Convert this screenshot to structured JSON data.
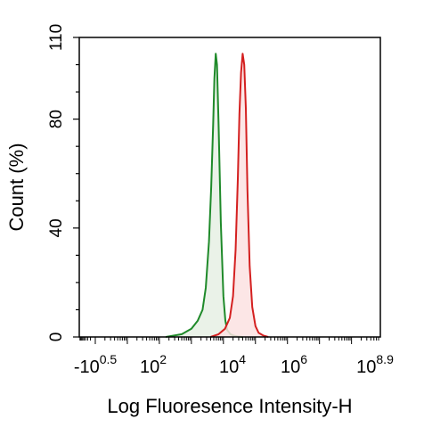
{
  "chart_data": {
    "type": "area",
    "title": "",
    "xlabel": "Log Fluoresence Intensity-H",
    "ylabel": "Count  (%)",
    "x_scale": "log",
    "xlim": [
      -0.5,
      8.9
    ],
    "ylim": [
      0,
      110
    ],
    "x_tick_labels": [
      {
        "value": 0.5,
        "prefix": "-10",
        "exp": "0.5"
      },
      {
        "value": 2,
        "prefix": "10",
        "exp": "2"
      },
      {
        "value": 4,
        "prefix": "10",
        "exp": "4"
      },
      {
        "value": 6,
        "prefix": "10",
        "exp": "6"
      },
      {
        "value": 8.9,
        "prefix": "10",
        "exp": "8.9"
      }
    ],
    "y_ticks": [
      0,
      40,
      80,
      110
    ],
    "grid": false,
    "legend": "none",
    "series": [
      {
        "color": "#1f8a2a",
        "fill": "#e6f0e4",
        "x": [
          2.2,
          2.7,
          3.0,
          3.2,
          3.35,
          3.45,
          3.55,
          3.62,
          3.68,
          3.72,
          3.76,
          3.8,
          3.85,
          3.92,
          4.0,
          4.06,
          4.12,
          4.22,
          4.32,
          4.45,
          4.6
        ],
        "y": [
          0,
          1,
          3,
          6,
          10,
          18,
          35,
          55,
          78,
          95,
          104,
          100,
          78,
          42,
          15,
          6,
          2.5,
          1,
          0.5,
          0.2,
          0
        ]
      },
      {
        "color": "#d42020",
        "fill": "#fbe2e2",
        "x": [
          3.6,
          3.85,
          4.05,
          4.2,
          4.3,
          4.38,
          4.45,
          4.5,
          4.55,
          4.6,
          4.65,
          4.7,
          4.75,
          4.82,
          4.9,
          5.0,
          5.1,
          5.25,
          5.4
        ],
        "y": [
          0,
          1,
          3,
          7,
          15,
          32,
          58,
          82,
          97,
          104,
          100,
          84,
          54,
          26,
          11,
          4,
          1.5,
          0.5,
          0
        ]
      }
    ]
  }
}
